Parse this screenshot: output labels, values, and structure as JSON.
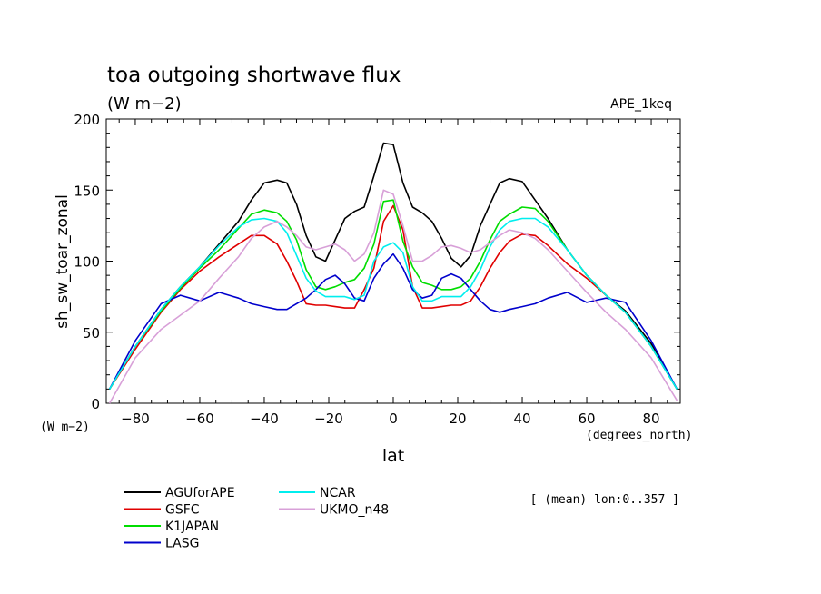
{
  "chart_data": {
    "type": "line",
    "title": "toa outgoing shortwave flux",
    "units_label": "(W m−2)",
    "experiment_label": "APE_1keq",
    "ylabel": "sh_sw_toar_zonal",
    "xlabel": "lat",
    "x_units": "(degrees_north)",
    "y_units": "(W m−2)",
    "note": "[ (mean) lon:0..357 ]",
    "xlim": [
      -89,
      89
    ],
    "ylim": [
      0,
      200
    ],
    "xticks": [
      -80,
      -60,
      -40,
      -20,
      0,
      20,
      40,
      60,
      80
    ],
    "yticks": [
      0,
      50,
      100,
      150,
      200
    ],
    "x": [
      -88,
      -80,
      -72,
      -66,
      -60,
      -54,
      -48,
      -44,
      -40,
      -36,
      -33,
      -30,
      -27,
      -24,
      -21,
      -18,
      -15,
      -12,
      -9,
      -6,
      -3,
      0,
      3,
      6,
      9,
      12,
      15,
      18,
      21,
      24,
      27,
      30,
      33,
      36,
      40,
      44,
      48,
      54,
      60,
      66,
      72,
      80,
      88
    ],
    "series": [
      {
        "name": "AGUforAPE",
        "color": "#000000",
        "values": [
          10,
          40,
          66,
          82,
          96,
          112,
          128,
          143,
          155,
          157,
          155,
          140,
          118,
          103,
          100,
          115,
          130,
          135,
          138,
          160,
          183,
          182,
          155,
          138,
          134,
          128,
          116,
          102,
          96,
          104,
          125,
          140,
          155,
          158,
          156,
          143,
          130,
          108,
          90,
          76,
          65,
          42,
          10
        ]
      },
      {
        "name": "GSFC",
        "color": "#e00000",
        "values": [
          10,
          38,
          64,
          80,
          93,
          103,
          112,
          118,
          118,
          112,
          100,
          86,
          70,
          69,
          69,
          68,
          67,
          67,
          80,
          95,
          128,
          139,
          122,
          82,
          67,
          67,
          68,
          69,
          69,
          72,
          82,
          95,
          106,
          114,
          119,
          118,
          111,
          98,
          88,
          76,
          64,
          40,
          10
        ]
      },
      {
        "name": "K1JAPAN",
        "color": "#00dd00",
        "values": [
          10,
          40,
          65,
          81,
          95,
          108,
          123,
          133,
          136,
          134,
          128,
          115,
          94,
          82,
          80,
          82,
          85,
          87,
          95,
          112,
          142,
          143,
          114,
          96,
          85,
          83,
          80,
          80,
          82,
          88,
          100,
          115,
          128,
          133,
          138,
          137,
          128,
          108,
          90,
          76,
          64,
          40,
          10
        ]
      },
      {
        "name": "LASG",
        "color": "#0000cc",
        "values": [
          10,
          44,
          70,
          76,
          72,
          78,
          74,
          70,
          68,
          66,
          66,
          70,
          74,
          80,
          87,
          90,
          84,
          74,
          72,
          88,
          98,
          105,
          95,
          80,
          74,
          76,
          88,
          91,
          88,
          80,
          72,
          66,
          64,
          66,
          68,
          70,
          74,
          78,
          71,
          74,
          71,
          44,
          10
        ]
      },
      {
        "name": "NCAR",
        "color": "#00eeee",
        "values": [
          10,
          40,
          66,
          82,
          96,
          111,
          124,
          129,
          130,
          128,
          120,
          104,
          88,
          79,
          75,
          75,
          75,
          73,
          76,
          100,
          110,
          113,
          106,
          82,
          72,
          72,
          75,
          75,
          75,
          82,
          94,
          110,
          122,
          128,
          130,
          130,
          124,
          108,
          90,
          76,
          64,
          40,
          10
        ]
      },
      {
        "name": "UKMO_n48",
        "color": "#d8a0d8",
        "values": [
          0,
          32,
          52,
          62,
          72,
          88,
          103,
          116,
          124,
          128,
          124,
          118,
          110,
          108,
          110,
          112,
          108,
          100,
          105,
          120,
          150,
          147,
          125,
          100,
          100,
          104,
          110,
          111,
          109,
          106,
          108,
          113,
          118,
          122,
          120,
          116,
          108,
          93,
          78,
          64,
          52,
          32,
          2
        ]
      }
    ]
  }
}
